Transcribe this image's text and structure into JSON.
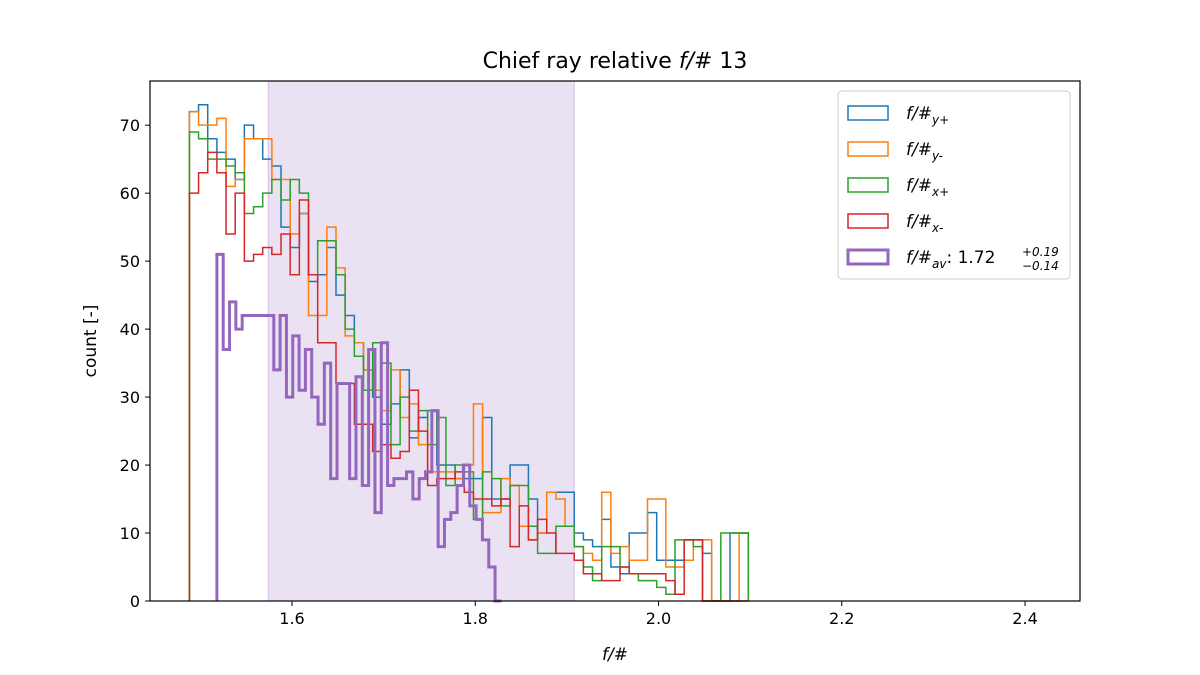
{
  "chart_data": {
    "type": "histogram-step",
    "title_main": "Chief ray relative ",
    "title_italic": "f/#",
    "title_suffix": " 13",
    "xlabel": "f/#",
    "ylabel": "count [-]",
    "xlim": [
      1.445,
      2.46
    ],
    "ylim": [
      0,
      76.5
    ],
    "xticks": [
      1.6,
      1.8,
      2.0,
      2.2,
      2.4
    ],
    "xtick_labels": [
      "1.6",
      "1.8",
      "2.0",
      "2.2",
      "2.4"
    ],
    "yticks": [
      0,
      10,
      20,
      30,
      40,
      50,
      60,
      70
    ],
    "ytick_labels": [
      "0",
      "10",
      "20",
      "30",
      "40",
      "50",
      "60",
      "70"
    ],
    "shaded_band": {
      "x0": 1.574,
      "x1": 1.908,
      "color": "#9467bd",
      "opacity": 0.2
    },
    "legend_position": "top-right",
    "series": [
      {
        "name": "f/#y+",
        "legend_base": "f/#",
        "legend_sub": "y+",
        "color": "#1f77b4",
        "width": 1.5,
        "x0": 1.488,
        "dx": 0.01,
        "values": [
          72,
          73,
          68,
          66,
          65,
          62,
          70,
          68,
          65,
          64,
          55,
          52,
          57,
          47,
          48,
          52,
          45,
          42,
          38,
          34,
          30,
          26,
          29,
          34,
          24,
          27,
          28,
          20,
          20,
          18,
          18,
          18,
          27,
          15,
          15,
          20,
          20,
          15,
          10,
          16,
          16,
          16,
          10,
          9,
          8,
          12,
          5,
          4,
          10,
          10,
          13,
          6,
          6,
          6,
          9,
          9,
          7,
          0,
          0,
          10,
          10
        ]
      },
      {
        "name": "f/#y-",
        "legend_base": "f/#",
        "legend_sub": "y-",
        "color": "#ff7f0e",
        "width": 1.5,
        "x0": 1.488,
        "dx": 0.01,
        "values": [
          72,
          70,
          70,
          71,
          61,
          62,
          68,
          68,
          68,
          62,
          62,
          54,
          57,
          42,
          42,
          55,
          49,
          39,
          38,
          34,
          31,
          28,
          34,
          27,
          29,
          23,
          19,
          19,
          19,
          18,
          20,
          29,
          13,
          13,
          18,
          17,
          11,
          9,
          10,
          16,
          15,
          11,
          8,
          7,
          6,
          16,
          7,
          8,
          6,
          6,
          15,
          15,
          5,
          5,
          6,
          9,
          9,
          0,
          0,
          0,
          10
        ]
      },
      {
        "name": "f/#x+",
        "legend_base": "f/#",
        "legend_sub": "x+",
        "color": "#2ca02c",
        "width": 1.5,
        "x0": 1.488,
        "dx": 0.01,
        "values": [
          69,
          68,
          65,
          65,
          64,
          63,
          57,
          58,
          60,
          62,
          59,
          62,
          60,
          48,
          53,
          53,
          48,
          40,
          36,
          31,
          38,
          35,
          23,
          30,
          25,
          28,
          23,
          27,
          17,
          20,
          19,
          12,
          19,
          18,
          14,
          17,
          17,
          11,
          7,
          7,
          11,
          11,
          8,
          5,
          3,
          8,
          8,
          5,
          4,
          3,
          3,
          2,
          1,
          9,
          9,
          8,
          0,
          0,
          10,
          10,
          10
        ]
      },
      {
        "name": "f/#x-",
        "legend_base": "f/#",
        "legend_sub": "x-",
        "color": "#d62728",
        "width": 1.5,
        "x0": 1.488,
        "dx": 0.01,
        "values": [
          60,
          63,
          66,
          63,
          54,
          60,
          50,
          51,
          52,
          51,
          54,
          48,
          59,
          48,
          38,
          38,
          32,
          32,
          26,
          26,
          22,
          23,
          21,
          22,
          31,
          25,
          17,
          18,
          18,
          19,
          16,
          15,
          15,
          14,
          15,
          8,
          14,
          9,
          12,
          10,
          7,
          7,
          6,
          4,
          4,
          3,
          3,
          5,
          4,
          4,
          4,
          4,
          3,
          1,
          9,
          9,
          0,
          0,
          0,
          0,
          0
        ]
      },
      {
        "name": "f/#av",
        "legend_base": "f/#",
        "legend_sub": "av",
        "legend_suffix": ": 1.72",
        "legend_sup": "+0.19",
        "legend_subval": "−0.14",
        "color": "#9467bd",
        "width": 3,
        "x0": 1.518,
        "dx": 0.0069,
        "values": [
          51,
          37,
          44,
          40,
          42,
          42,
          42,
          42,
          42,
          34,
          42,
          30,
          39,
          31,
          37,
          30,
          26,
          35,
          18,
          32,
          32,
          18,
          33,
          17,
          37,
          13,
          38,
          17,
          18,
          18,
          19,
          15,
          18,
          19,
          28,
          8,
          12,
          13,
          17,
          20,
          14,
          12,
          9,
          5,
          0
        ]
      }
    ]
  }
}
